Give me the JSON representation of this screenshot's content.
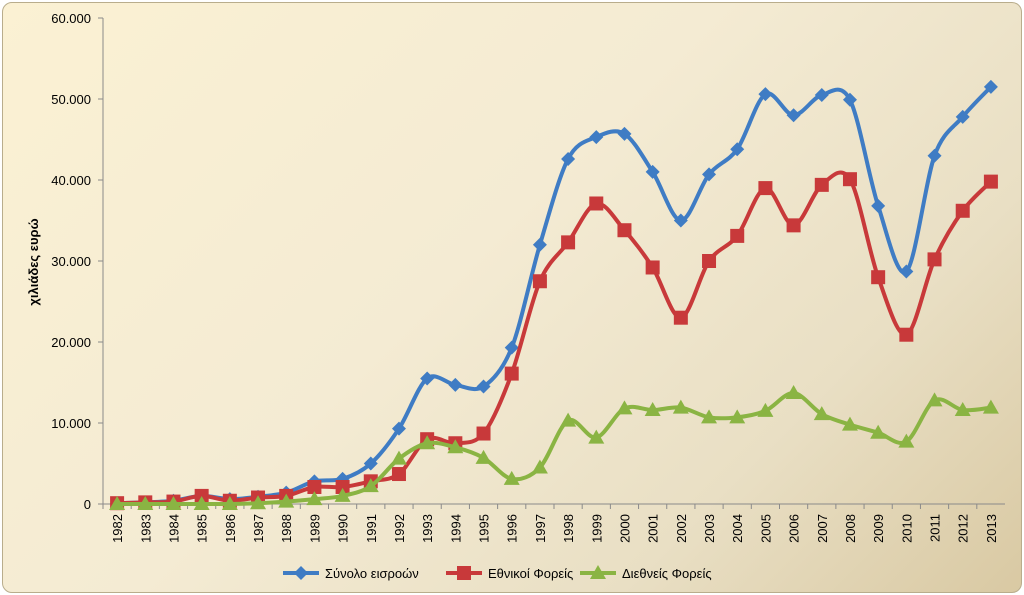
{
  "chart_data": {
    "type": "line",
    "title": "",
    "xlabel": "",
    "ylabel": "χιλιάδες ευρώ",
    "ylim": [
      0,
      60000
    ],
    "yticks": [
      "0",
      "10.000",
      "20.000",
      "30.000",
      "40.000",
      "50.000",
      "60.000"
    ],
    "grid": false,
    "legend_position": "bottom",
    "categories": [
      "1982",
      "1983",
      "1984",
      "1985",
      "1986",
      "1987",
      "1988",
      "1989",
      "1990",
      "1991",
      "1992",
      "1993",
      "1994",
      "1995",
      "1996",
      "1997",
      "1998",
      "1999",
      "2000",
      "2001",
      "2002",
      "2003",
      "2004",
      "2005",
      "2006",
      "2007",
      "2008",
      "2009",
      "2010",
      "2011",
      "2012",
      "2013"
    ],
    "series": [
      {
        "name": "Σύνολο εισροών",
        "color": "#3f7cc4",
        "marker": "diamond",
        "values": [
          100,
          200,
          400,
          1000,
          600,
          900,
          1400,
          2800,
          3100,
          5000,
          9300,
          15500,
          14700,
          14500,
          19300,
          32000,
          42600,
          45300,
          45700,
          41000,
          35000,
          40700,
          43800,
          50600,
          48000,
          50500,
          49900,
          36800,
          28700,
          43000,
          47800,
          51500
        ]
      },
      {
        "name": "Εθνικοί Φορείς",
        "color": "#c8393a",
        "marker": "square",
        "values": [
          100,
          200,
          300,
          1000,
          400,
          800,
          1000,
          2100,
          2100,
          2800,
          3700,
          8000,
          7500,
          8700,
          16100,
          27500,
          32300,
          37100,
          33800,
          29200,
          23000,
          30000,
          33100,
          39000,
          34400,
          39400,
          40100,
          28000,
          20900,
          30200,
          36200,
          39800
        ]
      },
      {
        "name": "Διεθνείς Φορείς",
        "color": "#8ab443",
        "marker": "triangle",
        "values": [
          0,
          0,
          0,
          0,
          0,
          100,
          300,
          600,
          1000,
          2200,
          5600,
          7500,
          7000,
          5700,
          3100,
          4500,
          10300,
          8200,
          11800,
          11600,
          11900,
          10700,
          10700,
          11500,
          13700,
          11100,
          9800,
          8800,
          7700,
          12800,
          11600,
          11900
        ]
      }
    ]
  }
}
